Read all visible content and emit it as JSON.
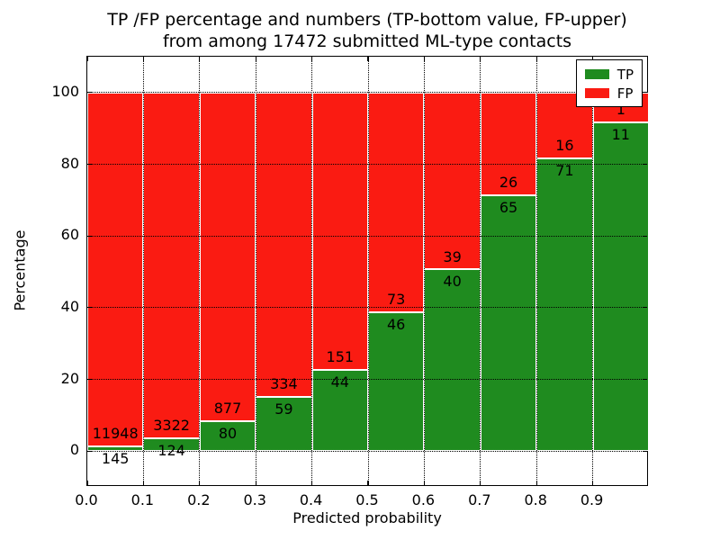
{
  "figure": {
    "title_line1": "TP /FP percentage and numbers (TP-bottom value, FP-upper)",
    "title_line2": "from among 17472 submitted ML-type contacts"
  },
  "chart_data": {
    "type": "bar",
    "variant": "stacked-percentage-histogram",
    "title": "TP /FP percentage and numbers (TP-bottom value, FP-upper)\nfrom among 17472 submitted ML-type contacts",
    "xlabel": "Predicted probability",
    "ylabel": "Percentage",
    "xlim": [
      0.0,
      1.0
    ],
    "ylim": [
      -10,
      110
    ],
    "bin_width": 0.1,
    "categories": [
      0.0,
      0.1,
      0.2,
      0.3,
      0.4,
      0.5,
      0.6,
      0.7,
      0.8,
      0.9
    ],
    "xtick_labels": [
      "0.0",
      "0.1",
      "0.2",
      "0.3",
      "0.4",
      "0.5",
      "0.6",
      "0.7",
      "0.8",
      "0.9"
    ],
    "ytick_values": [
      0,
      20,
      40,
      60,
      80,
      100
    ],
    "series": [
      {
        "name": "TP",
        "color": "#1f8b1f",
        "counts": [
          145,
          124,
          80,
          59,
          44,
          46,
          40,
          65,
          71,
          11
        ]
      },
      {
        "name": "FP",
        "color": "#fa1b12",
        "counts": [
          11948,
          3322,
          877,
          334,
          151,
          73,
          39,
          26,
          16,
          1
        ]
      }
    ],
    "bar_totals_normalized_to": 100,
    "total_contacts": 17472,
    "grid": "dotted-both-axes-above-bars",
    "bar_edge_color": "#ffffff",
    "legend_position": "upper right",
    "label_offset_pct": 3.5
  }
}
